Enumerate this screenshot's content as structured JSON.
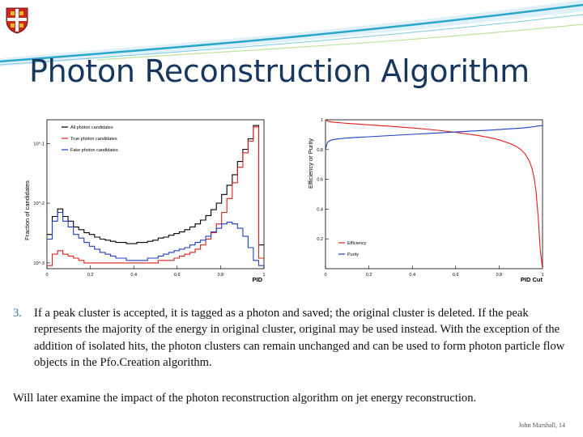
{
  "slide": {
    "title": "Photon Reconstruction Algorithm",
    "item_number": "3.",
    "item_text": "If a peak cluster is accepted, it is tagged as a photon and saved; the original cluster is deleted. If the peak represents the majority of the energy in original cluster, original may be used instead. With the exception of the addition of isolated hits, the photon clusters can remain unchanged and can be used to form photon particle flow objects in the Pfo.Creation algorithm.",
    "footer_text": "Will later examine the impact of the photon reconstruction algorithm on jet energy reconstruction.",
    "credit": "John Marshall, 14"
  },
  "colors": {
    "title": "#17375e",
    "banner": "#2aa6c9",
    "number": "#2d7bb8"
  },
  "chart_data": [
    {
      "type": "line",
      "xlabel": "PID",
      "ylabel": "Fraction of candidates",
      "x_ticks": [
        "0",
        "0.2",
        "0.4",
        "0.6",
        "0.8",
        "1"
      ],
      "xlim": [
        0,
        1
      ],
      "y_scale": "log",
      "y_ticks": [
        "10^-1",
        "10^-2",
        "10^-3"
      ],
      "ylim": [
        0.0008,
        0.25
      ],
      "legend": "top-left",
      "x": [
        0.0,
        0.025,
        0.05,
        0.075,
        0.1,
        0.125,
        0.15,
        0.175,
        0.2,
        0.225,
        0.25,
        0.275,
        0.3,
        0.325,
        0.35,
        0.375,
        0.4,
        0.425,
        0.45,
        0.475,
        0.5,
        0.525,
        0.55,
        0.575,
        0.6,
        0.625,
        0.65,
        0.675,
        0.7,
        0.725,
        0.75,
        0.775,
        0.8,
        0.825,
        0.85,
        0.875,
        0.9,
        0.925,
        0.95,
        0.975,
        1.0
      ],
      "series": [
        {
          "name": "All photon candidates",
          "color": "#000000",
          "values": [
            0.003,
            0.006,
            0.008,
            0.006,
            0.005,
            0.004,
            0.0036,
            0.0032,
            0.003,
            0.0027,
            0.0025,
            0.0024,
            0.0023,
            0.0022,
            0.0022,
            0.0021,
            0.0021,
            0.0022,
            0.0022,
            0.0023,
            0.0024,
            0.0026,
            0.0027,
            0.0029,
            0.0031,
            0.0033,
            0.0036,
            0.004,
            0.0045,
            0.0052,
            0.0062,
            0.0078,
            0.01,
            0.014,
            0.02,
            0.03,
            0.05,
            0.08,
            0.12,
            0.2,
            0.002
          ]
        },
        {
          "name": "True photon candidates",
          "color": "#e0201b",
          "values": [
            0.0009,
            0.0014,
            0.0016,
            0.0014,
            0.0013,
            0.0012,
            0.0011,
            0.001,
            0.001,
            0.001,
            0.001,
            0.001,
            0.001,
            0.001,
            0.001,
            0.001,
            0.001,
            0.001,
            0.001,
            0.001,
            0.001,
            0.0011,
            0.0011,
            0.0011,
            0.0012,
            0.0013,
            0.0014,
            0.0015,
            0.0017,
            0.002,
            0.0025,
            0.0032,
            0.0045,
            0.007,
            0.012,
            0.022,
            0.04,
            0.07,
            0.11,
            0.19,
            0.0012
          ]
        },
        {
          "name": "Fake photon candidates",
          "color": "#1f3fc8",
          "values": [
            0.0025,
            0.005,
            0.007,
            0.005,
            0.004,
            0.003,
            0.0026,
            0.0022,
            0.0019,
            0.0017,
            0.0015,
            0.0014,
            0.0013,
            0.0012,
            0.0012,
            0.0011,
            0.0011,
            0.0011,
            0.0011,
            0.0012,
            0.0012,
            0.0013,
            0.0014,
            0.0015,
            0.0016,
            0.0017,
            0.0018,
            0.002,
            0.0022,
            0.0024,
            0.0028,
            0.0033,
            0.0038,
            0.0045,
            0.0048,
            0.0045,
            0.0038,
            0.0028,
            0.0018,
            0.0011,
            0.0009
          ]
        }
      ]
    },
    {
      "type": "line",
      "xlabel": "PID Cut",
      "ylabel": "Efficiency or Purity",
      "x_ticks": [
        "0",
        "0.2",
        "0.4",
        "0.6",
        "0.8",
        "1"
      ],
      "xlim": [
        0,
        1
      ],
      "y_ticks": [
        "0.2",
        "0.4",
        "0.6",
        "0.8",
        "1"
      ],
      "ylim": [
        0,
        1
      ],
      "legend": "bottom-right",
      "x": [
        0.0,
        0.005,
        0.01,
        0.02,
        0.03,
        0.05,
        0.08,
        0.1,
        0.15,
        0.2,
        0.3,
        0.4,
        0.5,
        0.6,
        0.7,
        0.75,
        0.8,
        0.85,
        0.88,
        0.9,
        0.92,
        0.94,
        0.95,
        0.96,
        0.97,
        0.98,
        0.99,
        1.0
      ],
      "series": [
        {
          "name": "Efficiency",
          "color": "#e0201b",
          "values": [
            1.0,
            0.995,
            0.99,
            0.988,
            0.985,
            0.982,
            0.978,
            0.976,
            0.971,
            0.966,
            0.956,
            0.945,
            0.932,
            0.916,
            0.895,
            0.882,
            0.865,
            0.84,
            0.82,
            0.8,
            0.77,
            0.72,
            0.68,
            0.62,
            0.52,
            0.35,
            0.12,
            0.0
          ]
        },
        {
          "name": "Purity",
          "color": "#1f3fc8",
          "values": [
            0.8,
            0.83,
            0.85,
            0.86,
            0.865,
            0.87,
            0.875,
            0.877,
            0.882,
            0.886,
            0.894,
            0.902,
            0.91,
            0.918,
            0.926,
            0.93,
            0.934,
            0.939,
            0.942,
            0.944,
            0.947,
            0.95,
            0.952,
            0.954,
            0.956,
            0.958,
            0.96,
            0.96
          ]
        }
      ]
    }
  ]
}
